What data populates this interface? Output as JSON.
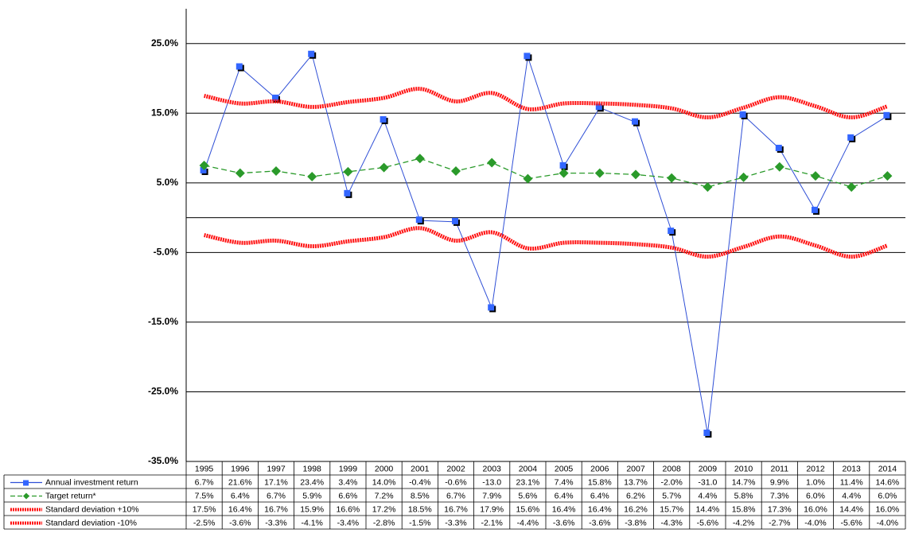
{
  "chart_data": {
    "type": "line",
    "categories": [
      "1995",
      "1996",
      "1997",
      "1998",
      "1999",
      "2000",
      "2001",
      "2002",
      "2003",
      "2004",
      "2005",
      "2006",
      "2007",
      "2008",
      "2009",
      "2010",
      "2011",
      "2012",
      "2013",
      "2014"
    ],
    "ylim": [
      -35,
      30
    ],
    "yticks": [
      {
        "value": -35,
        "label": "-35.0%"
      },
      {
        "value": -25,
        "label": "-25.0%"
      },
      {
        "value": -15,
        "label": "-15.0%"
      },
      {
        "value": -5,
        "label": "-5.0%"
      },
      {
        "value": 5,
        "label": "5.0%"
      },
      {
        "value": 15,
        "label": "15.0%"
      },
      {
        "value": 25,
        "label": "25.0%"
      }
    ],
    "grid": true,
    "series": [
      {
        "name": "Annual investment return",
        "color": "#2f4fd6",
        "marker": "square",
        "marker_color": "#3366ff",
        "values": [
          6.7,
          21.6,
          17.1,
          23.4,
          3.4,
          14.0,
          -0.4,
          -0.6,
          -13.0,
          23.1,
          7.4,
          15.8,
          13.7,
          -2.0,
          -31.0,
          14.7,
          9.9,
          1.0,
          11.4,
          14.6
        ],
        "value_labels": [
          "6.7%",
          "21.6%",
          "17.1%",
          "23.4%",
          "3.4%",
          "14.0%",
          "-0.4%",
          "-0.6%",
          "-13.0",
          "23.1%",
          "7.4%",
          "15.8%",
          "13.7%",
          "-2.0%",
          "-31.0",
          "14.7%",
          "9.9%",
          "1.0%",
          "11.4%",
          "14.6%"
        ]
      },
      {
        "name": "Target return*",
        "color": "#2a9a2a",
        "marker": "diamond",
        "dashed": true,
        "values": [
          7.5,
          6.4,
          6.7,
          5.9,
          6.6,
          7.2,
          8.5,
          6.7,
          7.9,
          5.6,
          6.4,
          6.4,
          6.2,
          5.7,
          4.4,
          5.8,
          7.3,
          6.0,
          4.4,
          6.0
        ],
        "value_labels": [
          "7.5%",
          "6.4%",
          "6.7%",
          "5.9%",
          "6.6%",
          "7.2%",
          "8.5%",
          "6.7%",
          "7.9%",
          "5.6%",
          "6.4%",
          "6.4%",
          "6.2%",
          "5.7%",
          "4.4%",
          "5.8%",
          "7.3%",
          "6.0%",
          "4.4%",
          "6.0%"
        ]
      },
      {
        "name": "Standard deviation +10%",
        "color": "#ff1010",
        "smooth": true,
        "values": [
          17.5,
          16.4,
          16.7,
          15.9,
          16.6,
          17.2,
          18.5,
          16.7,
          17.9,
          15.6,
          16.4,
          16.4,
          16.2,
          15.7,
          14.4,
          15.8,
          17.3,
          16.0,
          14.4,
          16.0
        ],
        "value_labels": [
          "17.5%",
          "16.4%",
          "16.7%",
          "15.9%",
          "16.6%",
          "17.2%",
          "18.5%",
          "16.7%",
          "17.9%",
          "15.6%",
          "16.4%",
          "16.4%",
          "16.2%",
          "15.7%",
          "14.4%",
          "15.8%",
          "17.3%",
          "16.0%",
          "14.4%",
          "16.0%"
        ]
      },
      {
        "name": "Standard deviation -10%",
        "color": "#ff1010",
        "smooth": true,
        "values": [
          -2.5,
          -3.6,
          -3.3,
          -4.1,
          -3.4,
          -2.8,
          -1.5,
          -3.3,
          -2.1,
          -4.4,
          -3.6,
          -3.6,
          -3.8,
          -4.3,
          -5.6,
          -4.2,
          -2.7,
          -4.0,
          -5.6,
          -4.0
        ],
        "value_labels": [
          "-2.5%",
          "-3.6%",
          "-3.3%",
          "-4.1%",
          "-3.4%",
          "-2.8%",
          "-1.5%",
          "-3.3%",
          "-2.1%",
          "-4.4%",
          "-3.6%",
          "-3.6%",
          "-3.8%",
          "-4.3%",
          "-5.6%",
          "-4.2%",
          "-2.7%",
          "-4.0%",
          "-5.6%",
          "-4.0%"
        ]
      }
    ]
  }
}
